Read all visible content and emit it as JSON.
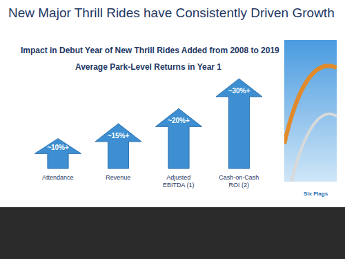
{
  "chart_data": {
    "type": "bar",
    "title": "New Major Thrill Rides have Consistently Driven Growth",
    "subtitle": "Impact in Debut Year of New Thrill Rides Added from 2008 to 2019",
    "annotations": [
      "Average Park-Level Returns in Year 1",
      "Six Flags"
    ],
    "categories": [
      "Attendance",
      "Revenue",
      "Adjusted EBITDA (1)",
      "Cash-on-Cash ROI (2)"
    ],
    "values": [
      10,
      15,
      20,
      30
    ],
    "value_labels": [
      "~10%+",
      "~15%+",
      "~20%+",
      "~30%+"
    ],
    "data_labels": true,
    "tick_labels": "x",
    "color": "#3d8fd1",
    "grid": false
  }
}
